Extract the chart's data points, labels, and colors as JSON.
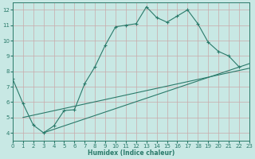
{
  "xlabel": "Humidex (Indice chaleur)",
  "bg_color": "#c8e8e4",
  "grid_color": "#c8aaaa",
  "line_color": "#2a7a6a",
  "xlim": [
    0,
    23
  ],
  "ylim": [
    3.5,
    12.5
  ],
  "xticks": [
    0,
    1,
    2,
    3,
    4,
    5,
    6,
    7,
    8,
    9,
    10,
    11,
    12,
    13,
    14,
    15,
    16,
    17,
    18,
    19,
    20,
    21,
    22,
    23
  ],
  "yticks": [
    4,
    5,
    6,
    7,
    8,
    9,
    10,
    11,
    12
  ],
  "curve1_x": [
    0,
    1,
    2,
    3,
    4,
    5,
    6,
    7,
    8,
    9,
    10,
    11,
    12,
    13,
    14,
    15,
    16,
    17,
    18,
    19,
    20,
    21,
    22
  ],
  "curve1_y": [
    7.5,
    5.9,
    4.5,
    4.0,
    4.45,
    5.45,
    5.5,
    7.2,
    8.3,
    9.7,
    10.9,
    11.0,
    11.1,
    12.2,
    11.5,
    11.2,
    11.6,
    12.0,
    11.1,
    9.9,
    9.3,
    9.0,
    8.3
  ],
  "line2_x": [
    1,
    23
  ],
  "line2_y": [
    5.0,
    8.2
  ],
  "line3_x": [
    3,
    23
  ],
  "line3_y": [
    4.0,
    8.5
  ]
}
